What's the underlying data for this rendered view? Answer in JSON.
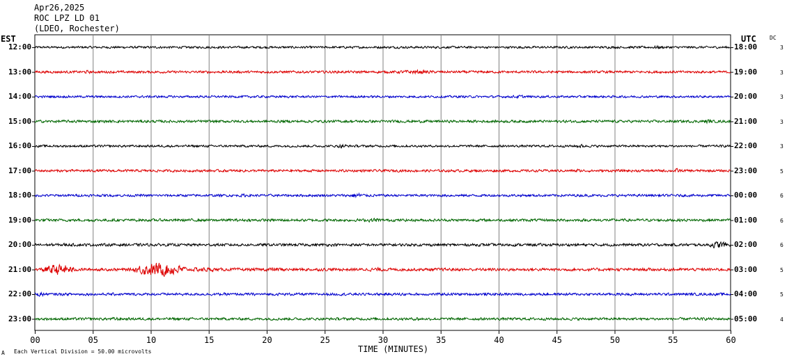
{
  "header": {
    "date": "Apr26,2025",
    "station": "ROC LPZ LD 01",
    "location": "(LDEO, Rochester)"
  },
  "labels": {
    "left_zone": "EST",
    "right_zone": "UTC",
    "dc_header": "DC"
  },
  "footer": {
    "scale_note": "Each Vertical Division =   50.00 microvolts",
    "corner_mark": "A"
  },
  "colors": {
    "black": "#000000",
    "red": "#dd0000",
    "blue": "#0000cc",
    "green": "#006600",
    "grid": "#808080"
  },
  "chart_data": {
    "type": "line",
    "xlabel": "TIME (MINUTES)",
    "xlim": [
      0,
      60
    ],
    "x_ticks": [
      "00",
      "05",
      "10",
      "15",
      "20",
      "25",
      "30",
      "35",
      "40",
      "45",
      "50",
      "55",
      "60"
    ],
    "rows": [
      {
        "est": "12:00",
        "utc": "18:00",
        "dc": "3",
        "color": "black",
        "amplitude": 2.0,
        "bursts": [
          {
            "start": 53,
            "end": 54.5,
            "amp": 3
          }
        ]
      },
      {
        "est": "13:00",
        "utc": "19:00",
        "dc": "3",
        "color": "red",
        "amplitude": 2.2,
        "bursts": [
          {
            "start": 30.5,
            "end": 35,
            "amp": 3.5
          },
          {
            "start": 4,
            "end": 5,
            "amp": 3
          }
        ]
      },
      {
        "est": "14:00",
        "utc": "20:00",
        "dc": "3",
        "color": "blue",
        "amplitude": 2.0,
        "bursts": [
          {
            "start": 41,
            "end": 42.5,
            "amp": 3
          }
        ]
      },
      {
        "est": "15:00",
        "utc": "21:00",
        "dc": "3",
        "color": "green",
        "amplitude": 2.3,
        "bursts": [
          {
            "start": 57.5,
            "end": 58.5,
            "amp": 4
          }
        ]
      },
      {
        "est": "16:00",
        "utc": "22:00",
        "dc": "3",
        "color": "black",
        "amplitude": 2.0,
        "bursts": [
          {
            "start": 26,
            "end": 27,
            "amp": 4
          },
          {
            "start": 46.5,
            "end": 47.5,
            "amp": 3.5
          }
        ]
      },
      {
        "est": "17:00",
        "utc": "23:00",
        "dc": "5",
        "color": "red",
        "amplitude": 2.2,
        "bursts": [
          {
            "start": 46.5,
            "end": 47,
            "amp": 4
          },
          {
            "start": 55,
            "end": 55.8,
            "amp": 4
          }
        ]
      },
      {
        "est": "18:00",
        "utc": "00:00",
        "dc": "6",
        "color": "blue",
        "amplitude": 2.2,
        "bursts": [
          {
            "start": 27,
            "end": 28.5,
            "amp": 5
          },
          {
            "start": 17.5,
            "end": 18.5,
            "amp": 3
          }
        ]
      },
      {
        "est": "19:00",
        "utc": "01:00",
        "dc": "6",
        "color": "green",
        "amplitude": 2.4,
        "bursts": [
          {
            "start": 28.5,
            "end": 30,
            "amp": 4
          }
        ]
      },
      {
        "est": "20:00",
        "utc": "02:00",
        "dc": "6",
        "color": "black",
        "amplitude": 2.4,
        "bursts": [
          {
            "start": 58,
            "end": 60,
            "amp": 6
          },
          {
            "start": 2,
            "end": 3,
            "amp": 3
          }
        ]
      },
      {
        "est": "21:00",
        "utc": "03:00",
        "dc": "5",
        "color": "red",
        "amplitude": 2.6,
        "bursts": [
          {
            "start": 0.5,
            "end": 3.5,
            "amp": 9
          },
          {
            "start": 8.5,
            "end": 13,
            "amp": 12
          },
          {
            "start": 13,
            "end": 16,
            "amp": 4
          },
          {
            "start": 19.5,
            "end": 22,
            "amp": 4
          },
          {
            "start": 28.5,
            "end": 30.5,
            "amp": 3.5
          }
        ]
      },
      {
        "est": "22:00",
        "utc": "04:00",
        "dc": "5",
        "color": "blue",
        "amplitude": 2.3,
        "bursts": [
          {
            "start": 0,
            "end": 1,
            "amp": 4
          },
          {
            "start": 31,
            "end": 32.5,
            "amp": 3
          }
        ]
      },
      {
        "est": "23:00",
        "utc": "05:00",
        "dc": "4",
        "color": "green",
        "amplitude": 2.3,
        "bursts": [
          {
            "start": 6.5,
            "end": 7.5,
            "amp": 3.5
          },
          {
            "start": 32.5,
            "end": 33.5,
            "amp": 3.5
          }
        ]
      }
    ]
  }
}
